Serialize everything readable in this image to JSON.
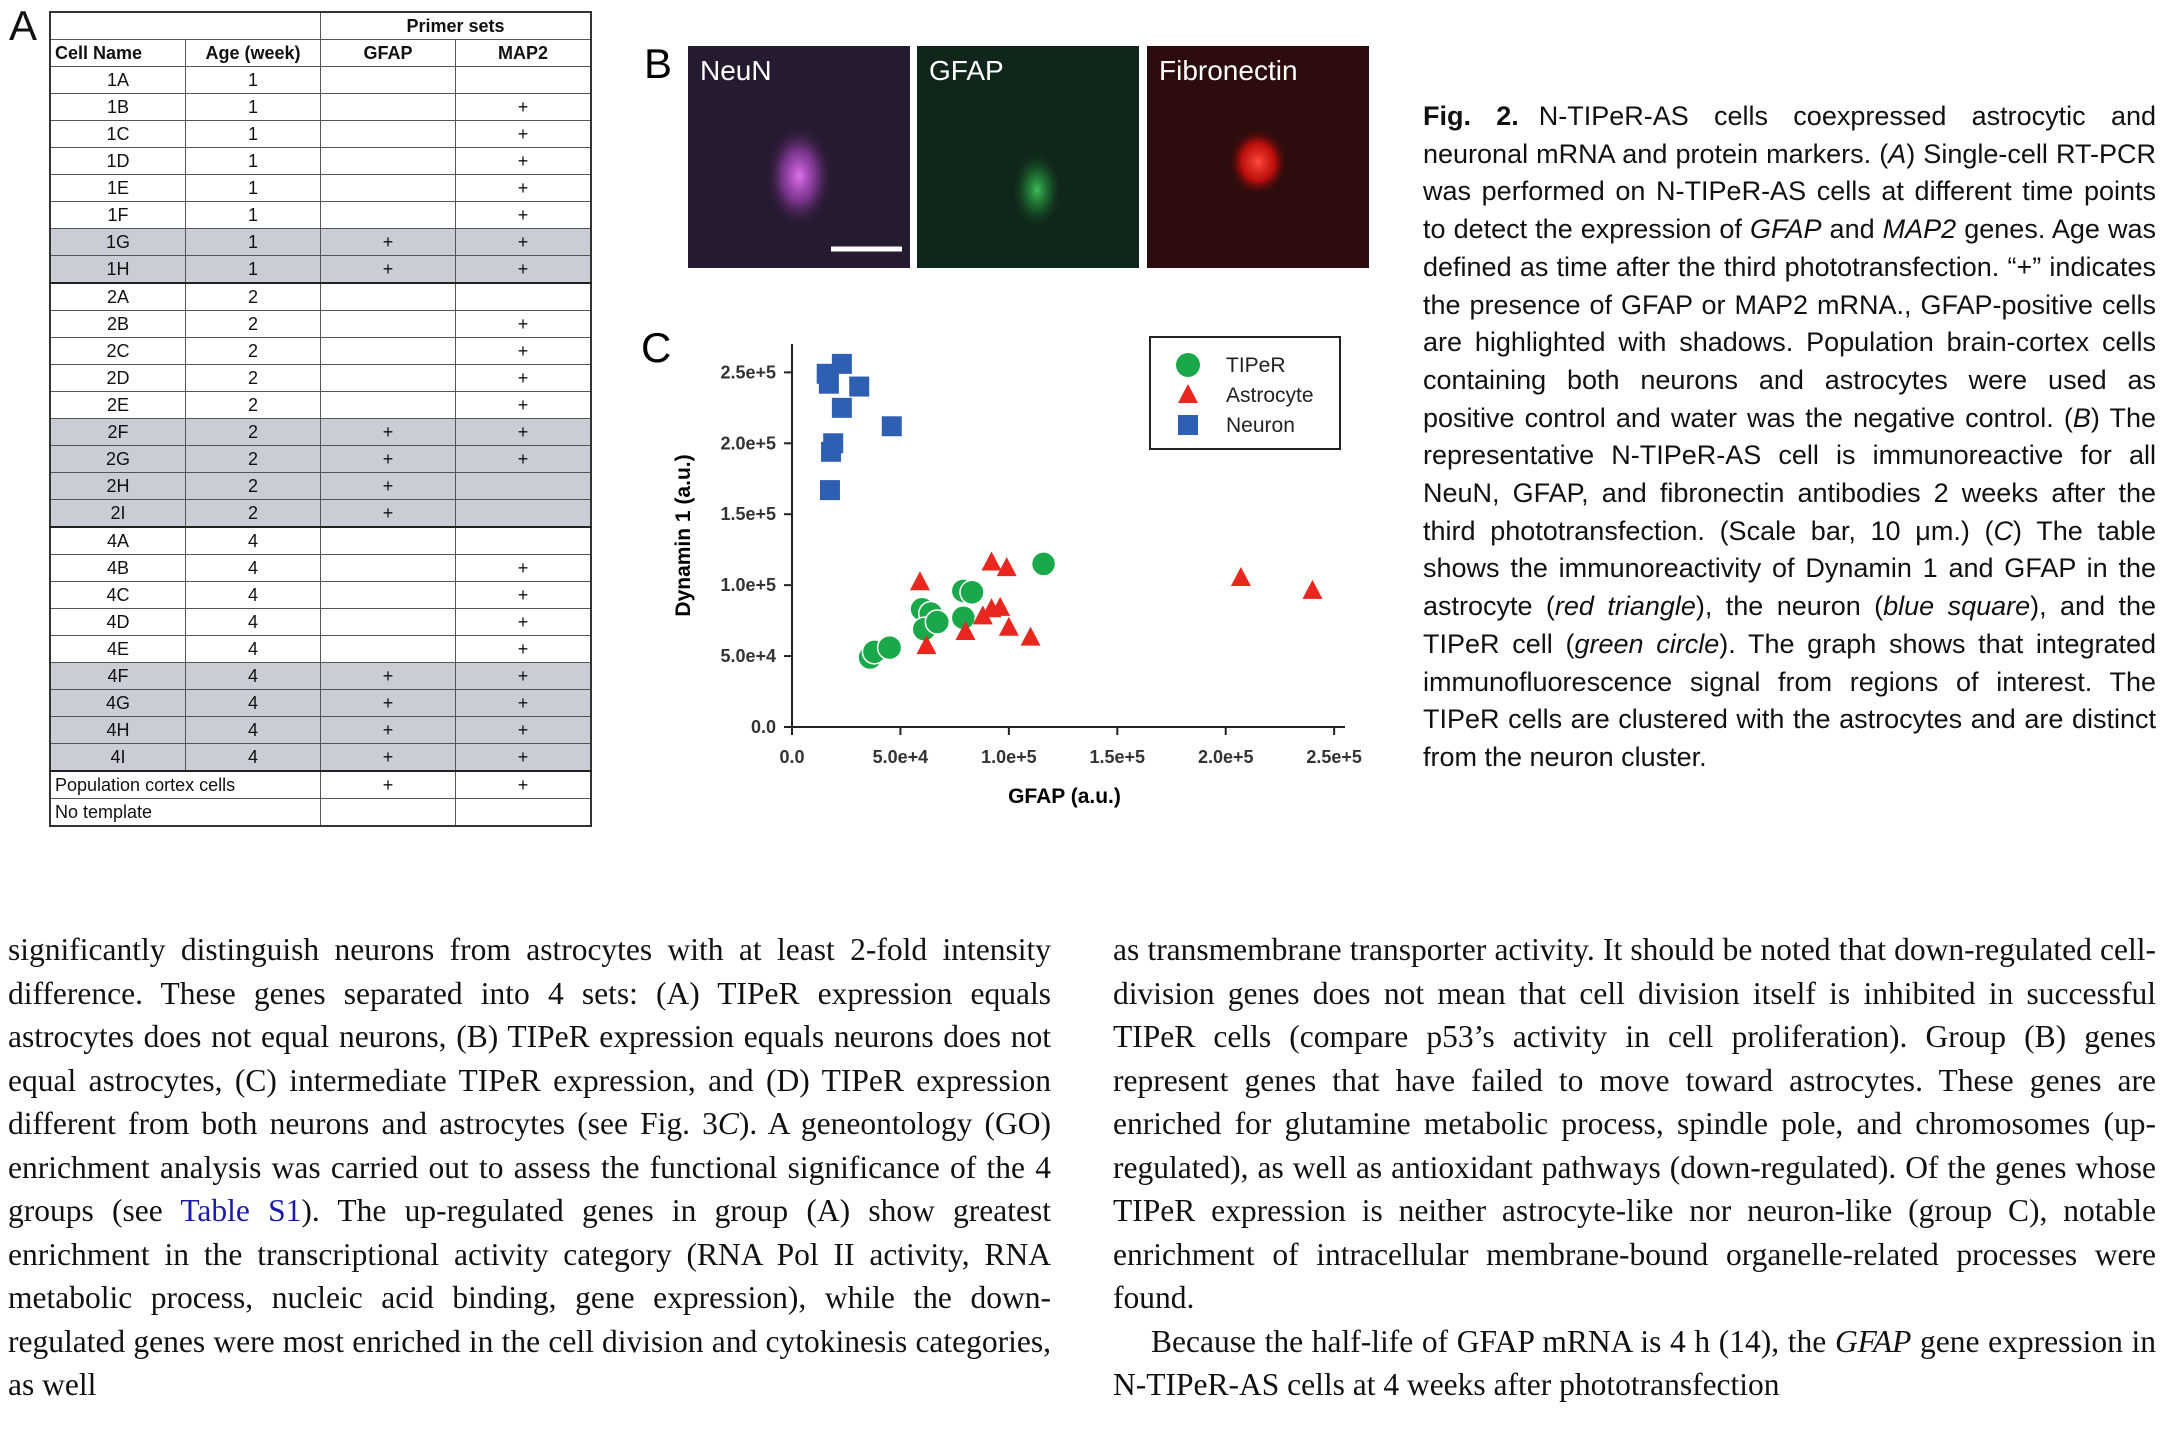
{
  "figure": {
    "panel_a": {
      "label": "A",
      "group_header": "Primer sets",
      "columns": [
        "Cell Name",
        "Age (week)",
        "GFAP",
        "MAP2"
      ],
      "rows": [
        {
          "cells": [
            "1A",
            1,
            null,
            null
          ],
          "shaded": false
        },
        {
          "cells": [
            "1B",
            1,
            null,
            "+"
          ],
          "shaded": false
        },
        {
          "cells": [
            "1C",
            1,
            null,
            "+"
          ],
          "shaded": false
        },
        {
          "cells": [
            "1D",
            1,
            null,
            "+"
          ],
          "shaded": false
        },
        {
          "cells": [
            "1E",
            1,
            null,
            "+"
          ],
          "shaded": false
        },
        {
          "cells": [
            "1F",
            1,
            null,
            "+"
          ],
          "shaded": false
        },
        {
          "cells": [
            "1G",
            1,
            "+",
            "+"
          ],
          "shaded": true
        },
        {
          "cells": [
            "1H",
            1,
            "+",
            "+"
          ],
          "shaded": true
        },
        {
          "cells": [
            "2A",
            2,
            null,
            null
          ],
          "shaded": false
        },
        {
          "cells": [
            "2B",
            2,
            null,
            "+"
          ],
          "shaded": false
        },
        {
          "cells": [
            "2C",
            2,
            null,
            "+"
          ],
          "shaded": false
        },
        {
          "cells": [
            "2D",
            2,
            null,
            "+"
          ],
          "shaded": false
        },
        {
          "cells": [
            "2E",
            2,
            null,
            "+"
          ],
          "shaded": false
        },
        {
          "cells": [
            "2F",
            2,
            "+",
            "+"
          ],
          "shaded": true
        },
        {
          "cells": [
            "2G",
            2,
            "+",
            "+"
          ],
          "shaded": true
        },
        {
          "cells": [
            "2H",
            2,
            "+",
            null
          ],
          "shaded": true
        },
        {
          "cells": [
            "2I",
            2,
            "+",
            null
          ],
          "shaded": true
        },
        {
          "cells": [
            "4A",
            4,
            null,
            null
          ],
          "shaded": false
        },
        {
          "cells": [
            "4B",
            4,
            null,
            "+"
          ],
          "shaded": false
        },
        {
          "cells": [
            "4C",
            4,
            null,
            "+"
          ],
          "shaded": false
        },
        {
          "cells": [
            "4D",
            4,
            null,
            "+"
          ],
          "shaded": false
        },
        {
          "cells": [
            "4E",
            4,
            null,
            "+"
          ],
          "shaded": false
        },
        {
          "cells": [
            "4F",
            4,
            "+",
            "+"
          ],
          "shaded": true
        },
        {
          "cells": [
            "4G",
            4,
            "+",
            "+"
          ],
          "shaded": true
        },
        {
          "cells": [
            "4H",
            4,
            "+",
            "+"
          ],
          "shaded": true
        },
        {
          "cells": [
            "4I",
            4,
            "+",
            "+"
          ],
          "shaded": true
        },
        {
          "cells": [
            "Population cortex cells",
            "+",
            "+"
          ],
          "shaded": false
        },
        {
          "cells": [
            "No template",
            null,
            null
          ],
          "shaded": false
        }
      ]
    },
    "panel_b": {
      "label": "B",
      "channels": [
        "NeuN",
        "GFAP",
        "Fibronectin"
      ]
    },
    "caption": {
      "label": "Fig. 2.",
      "runs": [
        "N-TIPeR-AS cells coexpressed astrocytic and neuronal mRNA and protein markers. (",
        {
          "text": "A",
          "style": "italic"
        },
        ") Single-cell RT-PCR was performed on N-TIPeR-AS cells at different time points to detect the expression of ",
        {
          "text": "GFAP",
          "style": "italic"
        },
        " and ",
        {
          "text": "MAP2",
          "style": "italic"
        },
        " genes. Age was defined as time after the third phototransfection. “+” indicates the presence of GFAP or MAP2 mRNA., GFAP-positive cells are highlighted with shadows. Population brain-cortex cells containing both neurons and astrocytes were used as positive control and water was the negative control. (",
        {
          "text": "B",
          "style": "italic"
        },
        ") The representative N-TIPeR-AS cell is immunoreactive for all NeuN, GFAP, and fibronectin antibodies 2 weeks after the third phototransfection. (Scale bar, 10 μm.) (",
        {
          "text": "C",
          "style": "italic"
        },
        ") The table shows the immunoreactivity of Dynamin 1 and GFAP in the astrocyte (",
        {
          "text": "red triangle",
          "style": "italic"
        },
        "), the neuron (",
        {
          "text": "blue square",
          "style": "italic"
        },
        "), and the TIPeR cell (",
        {
          "text": "green circle",
          "style": "italic"
        },
        "). The graph shows that integrated immunofluorescence signal from regions of interest. The TIPeR cells are clustered with the astrocytes and are distinct from the neuron cluster."
      ]
    }
  },
  "chart_data": {
    "type": "scatter",
    "label": "C",
    "x_label": "GFAP (a.u.)",
    "y_label": "Dynamin 1 (a.u.)",
    "xlim": [
      0,
      255000
    ],
    "ylim": [
      0,
      270000
    ],
    "xticks": [
      {
        "value": 0,
        "label": "0.0"
      },
      {
        "value": 50000,
        "label": "5.0e+4"
      },
      {
        "value": 100000,
        "label": "1.0e+5"
      },
      {
        "value": 150000,
        "label": "1.5e+5"
      },
      {
        "value": 200000,
        "label": "2.0e+5"
      },
      {
        "value": 250000,
        "label": "2.5e+5"
      }
    ],
    "yticks": [
      {
        "value": 0,
        "label": "0.0"
      },
      {
        "value": 50000,
        "label": "5.0e+4"
      },
      {
        "value": 100000,
        "label": "1.0e+5"
      },
      {
        "value": 150000,
        "label": "1.5e+5"
      },
      {
        "value": 200000,
        "label": "2.0e+5"
      },
      {
        "value": 250000,
        "label": "2.5e+5"
      }
    ],
    "legend": "upper right",
    "series": [
      {
        "name": "TIPeR",
        "color": "#1aa84a",
        "marker": "circle",
        "x": [
          36000,
          38000,
          45000,
          60000,
          64000,
          61000,
          67000,
          79000,
          83000,
          79000,
          116000
        ],
        "values": [
          49000,
          53000,
          56000,
          83000,
          80000,
          69000,
          74000,
          96000,
          95000,
          77000,
          115000
        ]
      },
      {
        "name": "Astrocyte",
        "color": "#e8281e",
        "marker": "triangle",
        "x": [
          59000,
          62000,
          80000,
          92000,
          99000,
          88000,
          92000,
          96000,
          100000,
          110000,
          207000,
          240000
        ],
        "values": [
          102000,
          57000,
          67000,
          116000,
          112000,
          78000,
          83000,
          84000,
          70000,
          63000,
          105000,
          96000
        ]
      },
      {
        "name": "Neuron",
        "color": "#2f5fb3",
        "marker": "square",
        "x": [
          16000,
          23000,
          17000,
          31000,
          23000,
          46000,
          19000,
          18000,
          17500
        ],
        "values": [
          249000,
          256000,
          242000,
          240000,
          225000,
          212000,
          200000,
          194000,
          167000
        ]
      }
    ]
  },
  "body": {
    "left": [
      [
        "significantly distinguish neurons from astrocytes with at least 2-fold intensity difference. These genes separated into 4 sets: (A) TIPeR expression equals astrocytes does not equal neurons, (B) TIPeR expression equals neurons does not equal astrocytes, (C) intermediate TIPeR expression, and (D) TIPeR expression different from both neurons and astrocytes (see Fig. 3",
        {
          "text": "C",
          "style": "italic"
        },
        "). A geneontology (GO) enrichment analysis was carried out to assess the functional significance of the 4 groups (see ",
        {
          "text": "Table S1",
          "style": "link"
        },
        "). The up-regulated genes in group (A) show greatest enrichment in the transcriptional activity category (RNA Pol II activity, RNA metabolic process, nucleic acid binding, gene expression), while the down-regulated genes were most enriched in the cell division and cytokinesis categories, as well"
      ]
    ],
    "right": [
      [
        "as transmembrane transporter activity. It should be noted that down-regulated cell-division genes does not mean that cell division itself is inhibited in successful TIPeR cells (compare p53’s activity in cell proliferation). Group (B) genes represent genes that have failed to move toward astrocytes. These genes are enriched for glutamine metabolic process, spindle pole, and chromosomes (up-regulated), as well as antioxidant pathways (down-regulated). Of the genes whose TIPeR expression is neither astrocyte-like nor neuron-like (group C), notable enrichment of intracellular membrane-bound organelle-related processes were found."
      ],
      [
        "Because the half-life of GFAP mRNA is 4 h (14), the ",
        {
          "text": "GFAP",
          "style": "italic"
        },
        " gene expression in N-TIPeR-AS cells at 4 weeks after phototransfection"
      ]
    ]
  }
}
